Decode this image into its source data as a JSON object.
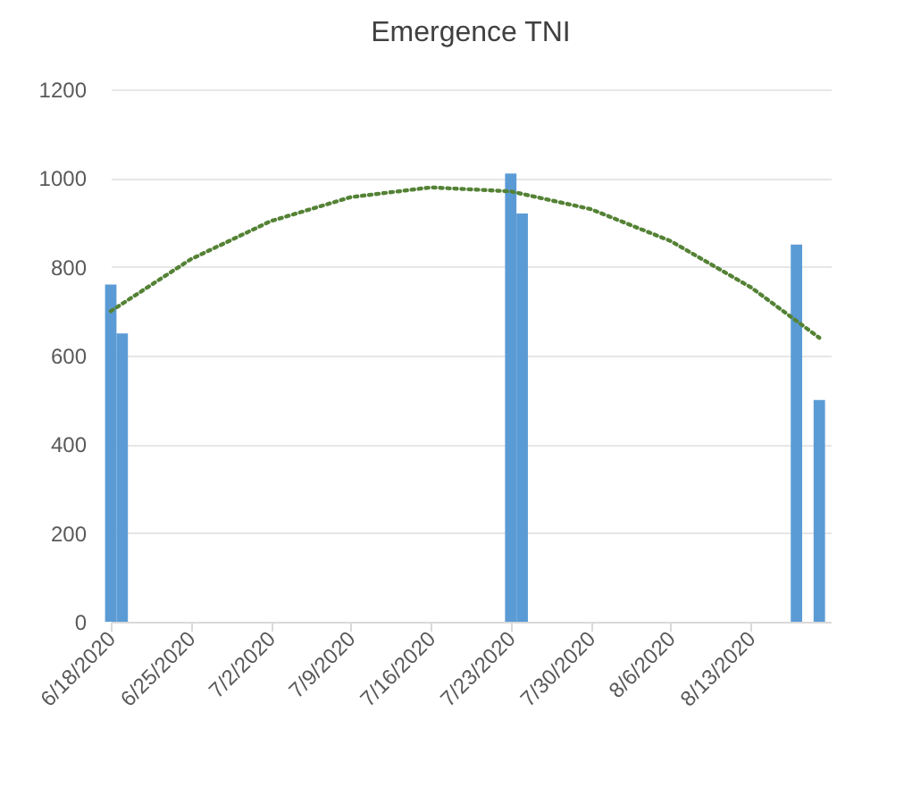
{
  "chart_data": {
    "type": "bar",
    "title": "Emergence TNI",
    "x": [
      "2020-06-18",
      "2020-06-19",
      "2020-07-23",
      "2020-07-24",
      "2020-08-17",
      "2020-08-19"
    ],
    "series": [
      {
        "color": "#5b9bd5",
        "values": [
          760,
          650,
          1010,
          920,
          850,
          500
        ]
      },
      {
        "type": "line",
        "color": "#548235",
        "line_style": "dotted",
        "marker": "none",
        "x": [
          "2020-06-18",
          "2020-06-25",
          "2020-07-02",
          "2020-07-09",
          "2020-07-16",
          "2020-07-23",
          "2020-07-30",
          "2020-08-06",
          "2020-08-13",
          "2020-08-19"
        ],
        "values": [
          700,
          817,
          903,
          957,
          979,
          970,
          930,
          858,
          754,
          640
        ]
      }
    ],
    "xlim": [
      "2020-06-18",
      "2020-08-20"
    ],
    "xticks": [
      {
        "value": "2020-06-18",
        "label": "6/18/2020"
      },
      {
        "value": "2020-06-25",
        "label": "6/25/2020"
      },
      {
        "value": "2020-07-02",
        "label": "7/2/2020"
      },
      {
        "value": "2020-07-09",
        "label": "7/9/2020"
      },
      {
        "value": "2020-07-16",
        "label": "7/16/2020"
      },
      {
        "value": "2020-07-23",
        "label": "7/23/2020"
      },
      {
        "value": "2020-07-30",
        "label": "7/30/2020"
      },
      {
        "value": "2020-08-06",
        "label": "8/6/2020"
      },
      {
        "value": "2020-08-13",
        "label": "8/13/2020"
      }
    ],
    "ylim": [
      0,
      1200
    ],
    "yticks": [
      0,
      200,
      400,
      600,
      800,
      1000,
      1200
    ],
    "grid": "y"
  }
}
